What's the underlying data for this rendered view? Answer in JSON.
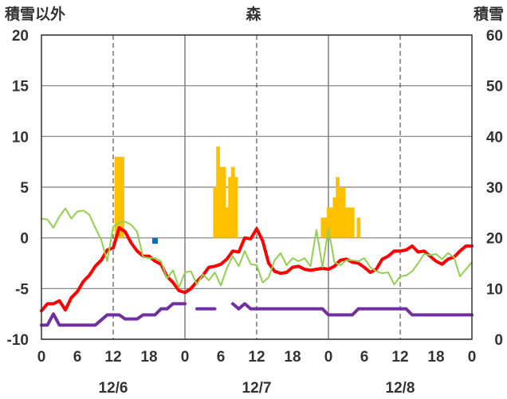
{
  "chart_data": {
    "type": "bar+line",
    "title": "森",
    "left_axis_label": "積雪以外",
    "right_axis_label": "積雪",
    "left_ylim": [
      -10,
      20
    ],
    "left_ticks": [
      "20",
      "15",
      "10",
      "5",
      "0",
      "-5",
      "-10"
    ],
    "right_ylim": [
      0,
      60
    ],
    "right_ticks": [
      "60",
      "50",
      "40",
      "30",
      "20",
      "10",
      "0"
    ],
    "x_hours_range": [
      0,
      72
    ],
    "x_tick_labels": [
      "0",
      "6",
      "12",
      "18",
      "0",
      "6",
      "12",
      "18",
      "0",
      "6",
      "12",
      "18",
      "0"
    ],
    "date_labels": [
      "12/6",
      "12/7",
      "12/8"
    ],
    "grid": true,
    "colors": {
      "bar": "#FFC000",
      "red": "#FF0000",
      "green": "#92D050",
      "purple": "#7030A0",
      "blue": "#0070C0",
      "grid_solid": "#7f7f7f",
      "grid_dashed": "#555555"
    },
    "bars": {
      "axis": "left",
      "width_hours": 0.55,
      "points": [
        [
          12,
          0
        ],
        [
          12.5,
          8
        ],
        [
          13,
          8
        ],
        [
          13.5,
          8
        ],
        [
          29,
          5
        ],
        [
          29.5,
          9
        ],
        [
          30,
          7
        ],
        [
          30.5,
          7
        ],
        [
          31,
          3
        ],
        [
          31.5,
          6
        ],
        [
          32,
          7
        ],
        [
          32.5,
          6
        ],
        [
          33,
          0
        ],
        [
          47,
          2
        ],
        [
          47.5,
          2
        ],
        [
          48,
          3
        ],
        [
          48.5,
          3
        ],
        [
          49,
          4
        ],
        [
          49.5,
          6
        ],
        [
          50,
          5
        ],
        [
          50.5,
          5
        ],
        [
          51,
          3
        ],
        [
          51.5,
          3
        ],
        [
          52,
          3
        ],
        [
          53,
          2
        ]
      ]
    },
    "series": [
      {
        "color_key": "red",
        "width": 4,
        "points": [
          [
            0,
            -7.2
          ],
          [
            1,
            -6.5
          ],
          [
            2,
            -6.5
          ],
          [
            3,
            -6.2
          ],
          [
            4,
            -7.1
          ],
          [
            5,
            -5.9
          ],
          [
            6,
            -5.3
          ],
          [
            7,
            -4.3
          ],
          [
            8,
            -3.7
          ],
          [
            9,
            -2.8
          ],
          [
            10,
            -2.2
          ],
          [
            11,
            -1.2
          ],
          [
            12,
            -1.0
          ],
          [
            13,
            1.0
          ],
          [
            14,
            0.6
          ],
          [
            15,
            -0.5
          ],
          [
            16,
            -1.3
          ],
          [
            17,
            -1.8
          ],
          [
            18,
            -1.8
          ],
          [
            19,
            -2.3
          ],
          [
            20,
            -2.6
          ],
          [
            21,
            -3.8
          ],
          [
            22,
            -4.4
          ],
          [
            23,
            -5.2
          ],
          [
            24,
            -5.4
          ],
          [
            25,
            -5.0
          ],
          [
            26,
            -4.3
          ],
          [
            27,
            -3.7
          ],
          [
            28,
            -2.9
          ],
          [
            29,
            -2.8
          ],
          [
            30,
            -2.6
          ],
          [
            31,
            -2.1
          ],
          [
            32,
            -1.3
          ],
          [
            33,
            -1.4
          ],
          [
            34,
            0.0
          ],
          [
            35,
            -0.1
          ],
          [
            36,
            0.9
          ],
          [
            37,
            -0.3
          ],
          [
            38,
            -2.5
          ],
          [
            39,
            -3.3
          ],
          [
            40,
            -3.5
          ],
          [
            41,
            -3.4
          ],
          [
            42,
            -2.9
          ],
          [
            43,
            -2.8
          ],
          [
            44,
            -3.1
          ],
          [
            45,
            -3.2
          ],
          [
            46,
            -3.1
          ],
          [
            47,
            -3.0
          ],
          [
            48,
            -3.1
          ],
          [
            49,
            -2.8
          ],
          [
            50,
            -2.2
          ],
          [
            51,
            -2.1
          ],
          [
            52,
            -2.4
          ],
          [
            53,
            -2.5
          ],
          [
            54,
            -2.9
          ],
          [
            55,
            -3.4
          ],
          [
            56,
            -3.1
          ],
          [
            57,
            -2.1
          ],
          [
            58,
            -1.8
          ],
          [
            59,
            -1.3
          ],
          [
            60,
            -1.3
          ],
          [
            61,
            -1.2
          ],
          [
            62,
            -0.8
          ],
          [
            63,
            -1.4
          ],
          [
            64,
            -1.3
          ],
          [
            65,
            -1.8
          ],
          [
            66,
            -2.3
          ],
          [
            67,
            -2.6
          ],
          [
            68,
            -2.1
          ],
          [
            69,
            -1.9
          ],
          [
            70,
            -1.3
          ],
          [
            71,
            -0.8
          ],
          [
            72,
            -0.8
          ]
        ]
      },
      {
        "color_key": "green",
        "width": 2,
        "points": [
          [
            0,
            1.9
          ],
          [
            1,
            1.8
          ],
          [
            2,
            1.0
          ],
          [
            3,
            2.1
          ],
          [
            4,
            2.9
          ],
          [
            5,
            1.9
          ],
          [
            6,
            2.6
          ],
          [
            7,
            2.7
          ],
          [
            8,
            2.3
          ],
          [
            9,
            1.0
          ],
          [
            10,
            -0.2
          ],
          [
            11,
            -2.3
          ],
          [
            12,
            1.1
          ],
          [
            13,
            1.5
          ],
          [
            14,
            1.6
          ],
          [
            15,
            1.3
          ],
          [
            16,
            0.6
          ],
          [
            17,
            -1.9
          ],
          [
            18,
            -2.0
          ],
          [
            19,
            -2.0
          ],
          [
            20,
            -2.3
          ],
          [
            21,
            -4.0
          ],
          [
            22,
            -3.2
          ],
          [
            23,
            -4.9
          ],
          [
            24,
            -3.4
          ],
          [
            25,
            -3.3
          ],
          [
            26,
            -4.6
          ],
          [
            27,
            -3.6
          ],
          [
            28,
            -4.2
          ],
          [
            29,
            -3.4
          ],
          [
            30,
            -4.7
          ],
          [
            31,
            -3.0
          ],
          [
            32,
            -1.8
          ],
          [
            33,
            -2.8
          ],
          [
            34,
            -1.3
          ],
          [
            35,
            -2.6
          ],
          [
            36,
            -2.7
          ],
          [
            37,
            -4.4
          ],
          [
            38,
            -3.9
          ],
          [
            39,
            -2.2
          ],
          [
            40,
            -1.5
          ],
          [
            41,
            -2.7
          ],
          [
            42,
            -2.0
          ],
          [
            43,
            -2.3
          ],
          [
            44,
            -2.0
          ],
          [
            45,
            -2.8
          ],
          [
            46,
            0.8
          ],
          [
            47,
            -2.9
          ],
          [
            48,
            0.9
          ],
          [
            49,
            -2.4
          ],
          [
            50,
            -2.7
          ],
          [
            51,
            -2.2
          ],
          [
            52,
            -2.2
          ],
          [
            53,
            -2.3
          ],
          [
            54,
            -2.0
          ],
          [
            55,
            -2.9
          ],
          [
            56,
            -3.3
          ],
          [
            57,
            -3.5
          ],
          [
            58,
            -3.4
          ],
          [
            59,
            -4.6
          ],
          [
            60,
            -3.8
          ],
          [
            61,
            -3.7
          ],
          [
            62,
            -3.3
          ],
          [
            63,
            -2.5
          ],
          [
            64,
            -1.6
          ],
          [
            65,
            -1.7
          ],
          [
            66,
            -1.6
          ],
          [
            67,
            -2.1
          ],
          [
            68,
            -1.5
          ],
          [
            69,
            -1.9
          ],
          [
            70,
            -3.8
          ],
          [
            71,
            -3.1
          ],
          [
            72,
            -2.4
          ]
        ]
      },
      {
        "color_key": "purple",
        "width": 4,
        "segments": [
          [
            [
              0,
              -8.6
            ],
            [
              1,
              -8.6
            ],
            [
              2,
              -7.5
            ],
            [
              3,
              -8.6
            ],
            [
              4,
              -8.6
            ],
            [
              5,
              -8.6
            ],
            [
              6,
              -8.6
            ],
            [
              7,
              -8.6
            ],
            [
              8,
              -8.6
            ],
            [
              9,
              -8.6
            ],
            [
              10,
              -8.1
            ],
            [
              11,
              -7.6
            ],
            [
              12,
              -7.6
            ],
            [
              13,
              -7.6
            ],
            [
              14,
              -8.0
            ],
            [
              15,
              -8.0
            ],
            [
              16,
              -8.0
            ],
            [
              17,
              -7.6
            ],
            [
              18,
              -7.6
            ],
            [
              19,
              -7.6
            ],
            [
              20,
              -7.0
            ],
            [
              21,
              -7.0
            ],
            [
              22,
              -6.5
            ],
            [
              23,
              -6.5
            ],
            [
              24,
              -6.5
            ]
          ],
          [
            [
              26,
              -7.0
            ],
            [
              27,
              -7.0
            ],
            [
              28,
              -7.0
            ],
            [
              29,
              -7.0
            ]
          ],
          [
            [
              32,
              -6.5
            ],
            [
              33,
              -7.0
            ],
            [
              34,
              -6.5
            ],
            [
              35,
              -7.0
            ],
            [
              36,
              -7.0
            ],
            [
              37,
              -7.0
            ],
            [
              38,
              -7.0
            ],
            [
              39,
              -7.0
            ],
            [
              40,
              -7.0
            ],
            [
              41,
              -7.0
            ],
            [
              42,
              -7.0
            ],
            [
              43,
              -7.0
            ],
            [
              44,
              -7.0
            ],
            [
              45,
              -7.0
            ],
            [
              46,
              -7.0
            ],
            [
              47,
              -7.0
            ],
            [
              48,
              -7.6
            ],
            [
              49,
              -7.6
            ],
            [
              50,
              -7.6
            ],
            [
              51,
              -7.6
            ],
            [
              52,
              -7.6
            ],
            [
              53,
              -7.0
            ],
            [
              54,
              -7.0
            ],
            [
              55,
              -7.0
            ],
            [
              56,
              -7.0
            ],
            [
              57,
              -7.0
            ],
            [
              58,
              -7.0
            ],
            [
              59,
              -7.0
            ],
            [
              60,
              -7.0
            ],
            [
              61,
              -7.0
            ],
            [
              62,
              -7.6
            ],
            [
              63,
              -7.6
            ],
            [
              64,
              -7.6
            ],
            [
              65,
              -7.6
            ],
            [
              66,
              -7.6
            ],
            [
              67,
              -7.6
            ],
            [
              68,
              -7.6
            ],
            [
              69,
              -7.6
            ],
            [
              70,
              -7.6
            ],
            [
              71,
              -7.6
            ],
            [
              72,
              -7.6
            ]
          ]
        ]
      }
    ],
    "markers": [
      {
        "color_key": "blue",
        "x": 19,
        "y": -0.3,
        "shape": "square"
      }
    ]
  }
}
